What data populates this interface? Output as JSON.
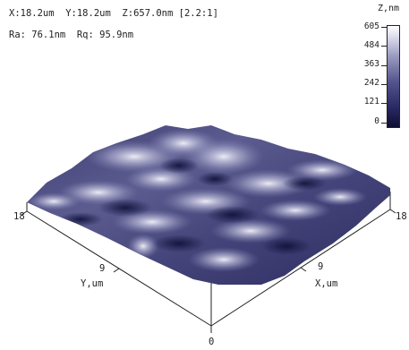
{
  "header": {
    "dimensions": "X:18.2um  Y:18.2um  Z:657.0nm [2.2:1]",
    "roughness": "Ra: 76.1nm  Rq: 95.9nm"
  },
  "colorbar": {
    "unit": "Z,nm",
    "ticks": [
      "605",
      "484",
      "363",
      "242",
      "121",
      "0"
    ]
  },
  "axes": {
    "left_corner": "18",
    "right_corner": "18",
    "bottom_corner": "0",
    "y_mid_tick": "9",
    "y_label": "Y,um",
    "x_mid_tick": "9",
    "x_label": "X,um"
  },
  "colors": {
    "surface_dark": "#1c1c4a",
    "surface_mid": "#6a6a9c",
    "surface_light": "#eeeef8"
  }
}
